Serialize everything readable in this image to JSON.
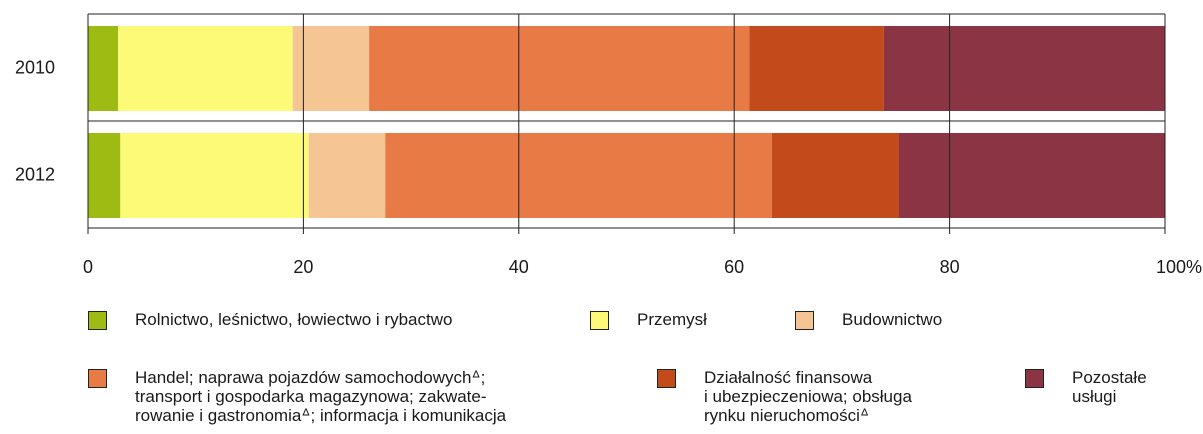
{
  "chart_data": {
    "type": "stacked_barh",
    "categories": [
      "2010",
      "2012"
    ],
    "series": [
      {
        "name": "Rolnictwo, leśnictwo, łowiectwo i rybactwo",
        "color": "#9dbb12",
        "values": [
          2.8,
          3.0
        ]
      },
      {
        "name": "Przemysł",
        "color": "#fdfa78",
        "values": [
          16.2,
          17.5
        ]
      },
      {
        "name": "Budownictwo",
        "color": "#f5c694",
        "values": [
          7.1,
          7.1
        ]
      },
      {
        "name": "Handel; naprawa pojazdów samochodowychᐞ;\ntransport i gospodarka magazynowa; zakwate-\nrowanie i gastronomiaᐞ; informacja i komunikacja",
        "color": "#e87a45",
        "values": [
          35.3,
          35.9
        ]
      },
      {
        "name": "Działalność finansowa\ni ubezpieczeniowa; obsługa\nrynku nieruchomościᐞ",
        "color": "#c34b1b",
        "values": [
          12.5,
          11.8
        ]
      },
      {
        "name": "Pozostałe\nusługi",
        "color": "#8b3443",
        "values": [
          26.1,
          24.7
        ]
      }
    ],
    "xlim": [
      0,
      100
    ],
    "xticks": [
      0,
      20,
      40,
      60,
      80,
      {
        "value": 100,
        "label": "100%"
      }
    ],
    "grid": true
  }
}
